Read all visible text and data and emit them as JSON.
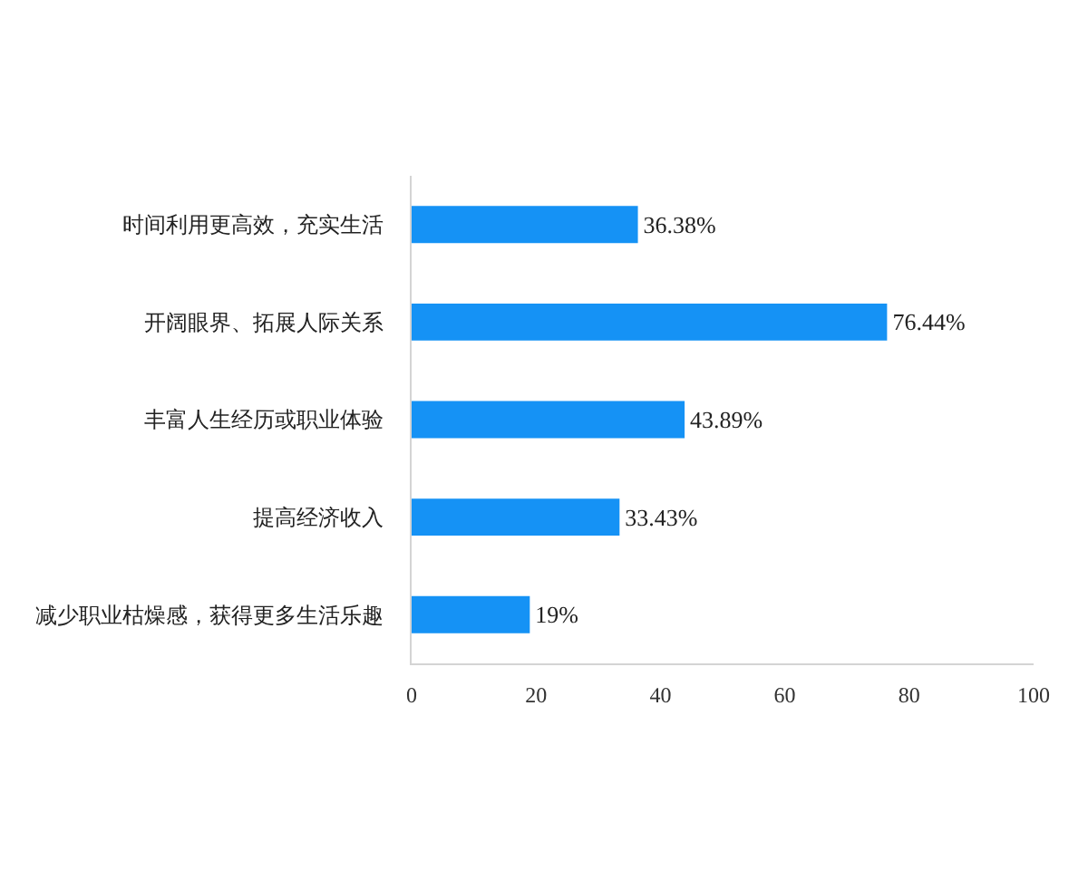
{
  "chart_data": {
    "type": "bar",
    "orientation": "horizontal",
    "categories": [
      "时间利用更高效，充实生活",
      "开阔眼界、拓展人际关系",
      "丰富人生经历或职业体验",
      "提高经济收入",
      "减少职业枯燥感，获得更多生活乐趣"
    ],
    "values": [
      36.38,
      76.44,
      43.89,
      33.43,
      19
    ],
    "value_labels": [
      "36.38%",
      "76.44%",
      "43.89%",
      "33.43%",
      "19%"
    ],
    "color": "#1592f5",
    "xlim": [
      0,
      100
    ],
    "xticks": [
      0,
      20,
      40,
      60,
      80,
      100
    ]
  }
}
